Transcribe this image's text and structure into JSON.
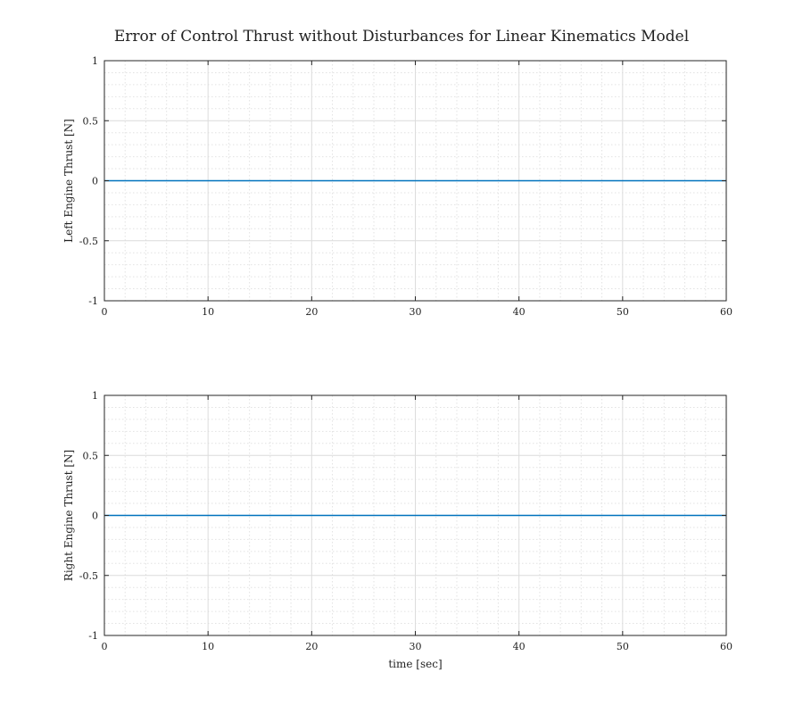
{
  "figure_title": "Error of Control Thrust without Disturbances for Linear Kinematics Model",
  "colors": {
    "series": "#0072bd",
    "axes": "#262626"
  },
  "chart_data": [
    {
      "type": "line",
      "title": "",
      "xlabel": "",
      "ylabel": "Left Engine Thrust  [N]",
      "xlim": [
        0,
        60
      ],
      "ylim": [
        -1,
        1
      ],
      "xticks": [
        0,
        10,
        20,
        30,
        40,
        50,
        60
      ],
      "xtick_labels": [
        "0",
        "10",
        "20",
        "30",
        "40",
        "50",
        "60"
      ],
      "yticks": [
        -1,
        -0.5,
        0,
        0.5,
        1
      ],
      "ytick_labels": [
        "-1",
        "-0.5",
        "0",
        "0.5",
        "1"
      ],
      "grid": true,
      "minor_grid": true,
      "series": [
        {
          "x": [
            0,
            60
          ],
          "y": [
            0,
            0
          ]
        }
      ]
    },
    {
      "type": "line",
      "title": "",
      "xlabel": "time [sec]",
      "ylabel": "Right Engine Thrust  [N]",
      "xlim": [
        0,
        60
      ],
      "ylim": [
        -1,
        1
      ],
      "xticks": [
        0,
        10,
        20,
        30,
        40,
        50,
        60
      ],
      "xtick_labels": [
        "0",
        "10",
        "20",
        "30",
        "40",
        "50",
        "60"
      ],
      "yticks": [
        -1,
        -0.5,
        0,
        0.5,
        1
      ],
      "ytick_labels": [
        "-1",
        "-0.5",
        "0",
        "0.5",
        "1"
      ],
      "grid": true,
      "minor_grid": true,
      "series": [
        {
          "x": [
            0,
            60
          ],
          "y": [
            0,
            0
          ]
        }
      ]
    }
  ]
}
